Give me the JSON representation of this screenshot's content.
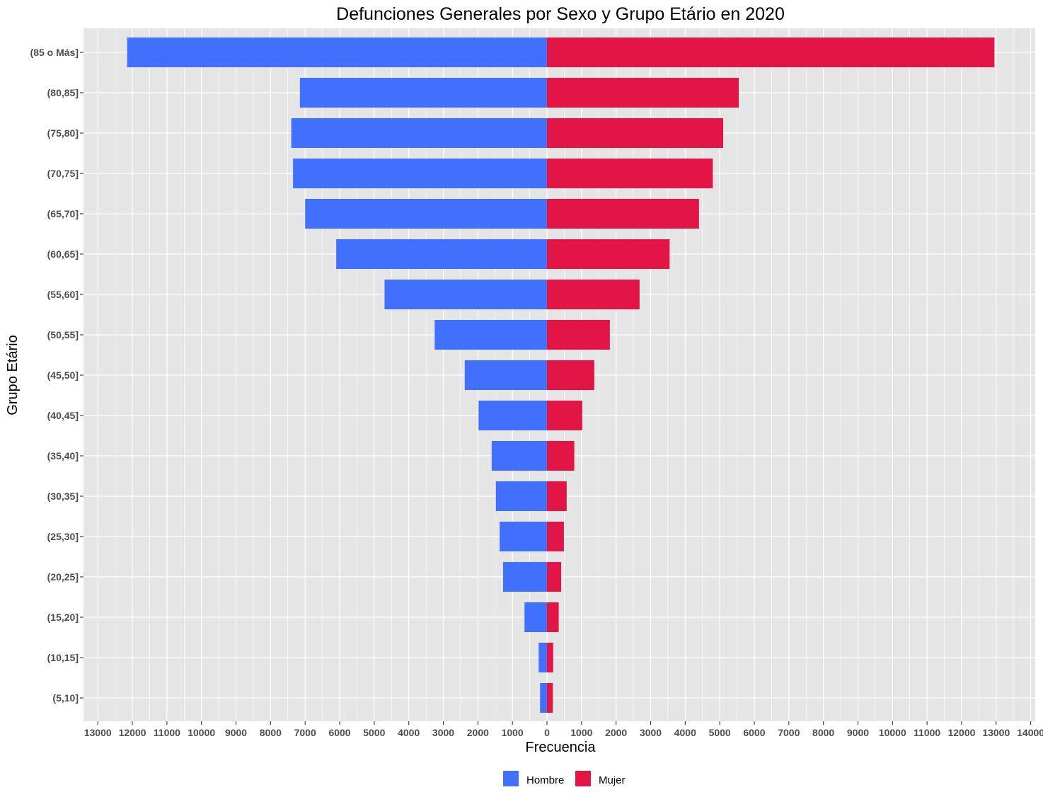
{
  "chart_data": {
    "type": "bar",
    "orientation": "horizontal",
    "title": "Defunciones Generales por Sexo y Grupo Etário en 2020",
    "xlabel": "Frecuencia",
    "ylabel": "Grupo Etário",
    "xlim": [
      -13000,
      14000
    ],
    "x_ticks": [
      -13000,
      -12000,
      -11000,
      -10000,
      -9000,
      -8000,
      -7000,
      -6000,
      -5000,
      -4000,
      -3000,
      -2000,
      -1000,
      0,
      1000,
      2000,
      3000,
      4000,
      5000,
      6000,
      7000,
      8000,
      9000,
      10000,
      11000,
      12000,
      13000,
      14000
    ],
    "x_tick_labels": [
      "13000",
      "12000",
      "11000",
      "10000",
      "9000",
      "8000",
      "7000",
      "6000",
      "5000",
      "4000",
      "3000",
      "2000",
      "1000",
      "0",
      "1000",
      "2000",
      "3000",
      "4000",
      "5000",
      "6000",
      "7000",
      "8000",
      "9000",
      "10000",
      "11000",
      "12000",
      "13000",
      "14000"
    ],
    "categories": [
      "(85 o Más]",
      "(80,85]",
      "(75,80]",
      "(70,75]",
      "(65,70]",
      "(60,65]",
      "(55,60]",
      "(50,55]",
      "(45,50]",
      "(40,45]",
      "(35,40]",
      "(30,35]",
      "(25,30]",
      "(20,25]",
      "(15,20]",
      "(10,15]",
      "(5,10]"
    ],
    "series": [
      {
        "name": "Hombre",
        "color": "#4170ff",
        "values": [
          -12150,
          -7150,
          -7400,
          -7350,
          -7000,
          -6100,
          -4700,
          -3250,
          -2380,
          -1980,
          -1600,
          -1480,
          -1370,
          -1270,
          -650,
          -240,
          -200
        ]
      },
      {
        "name": "Mujer",
        "color": "#e31446",
        "values": [
          12950,
          5550,
          5100,
          4800,
          4400,
          3550,
          2680,
          1820,
          1370,
          1020,
          790,
          570,
          490,
          410,
          340,
          180,
          170
        ]
      }
    ],
    "grid": true,
    "legend_position": "bottom",
    "panel_background": "#e5e5e5",
    "grid_color": "#ffffff"
  }
}
